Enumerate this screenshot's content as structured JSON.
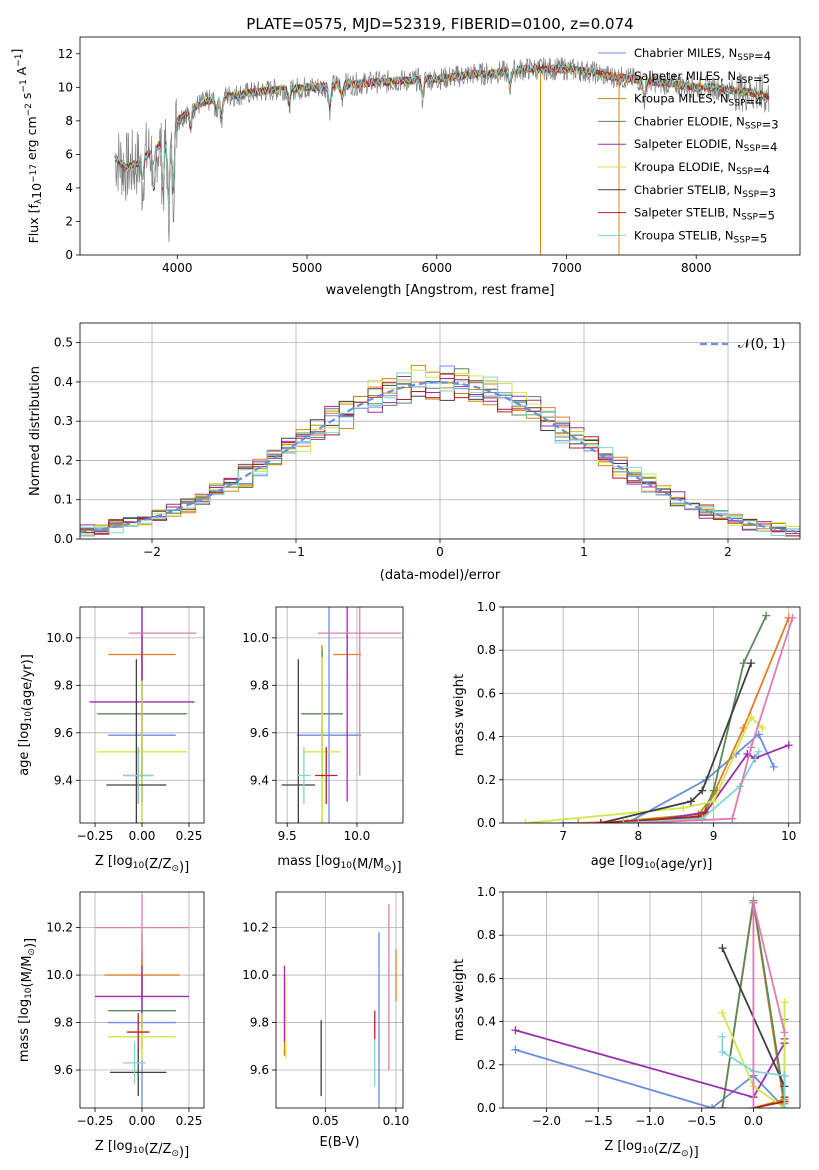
{
  "colors": [
    "#6a8fdc",
    "#e67e22",
    "#bf9000",
    "#5b8a5b",
    "#9b2fae",
    "#d6e64a",
    "#404040",
    "#b22222",
    "#7fd6d6",
    "#e07bb5"
  ],
  "chart_data": [
    {
      "id": "spectrum",
      "type": "line",
      "title": "PLATE=0575, MJD=52319, FIBERID=0100, z=0.074",
      "xlabel": "wavelength [Angstrom, rest frame]",
      "ylabel": "Flux [f",
      "ylabel_sub": "λ",
      "ylabel_mid": "10",
      "ylabel_sup1": "−17",
      "ylabel_rest": " erg cm",
      "ylabel_sup2": "−2",
      "ylabel_rest2": " s",
      "ylabel_sup3": "−1",
      "ylabel_rest3": " A",
      "ylabel_sup4": "−1",
      "ylabel_end": "]",
      "xlim": [
        3250,
        8800
      ],
      "ylim": [
        0,
        13
      ],
      "xticks": [
        4000,
        5000,
        6000,
        7000,
        8000
      ],
      "yticks": [
        0,
        2,
        4,
        6,
        8,
        10,
        12
      ],
      "legend": [
        {
          "name": "Chabrier MILES, N",
          "sub": "SSP",
          "val": "=4"
        },
        {
          "name": "Salpeter MILES, N",
          "sub": "SSP",
          "val": "=5"
        },
        {
          "name": "Kroupa MILES, N",
          "sub": "SSP",
          "val": "=4"
        },
        {
          "name": "Chabrier ELODIE, N",
          "sub": "SSP",
          "val": "=3"
        },
        {
          "name": "Salpeter ELODIE, N",
          "sub": "SSP",
          "val": "=4"
        },
        {
          "name": "Kroupa ELODIE, N",
          "sub": "SSP",
          "val": "=4"
        },
        {
          "name": "Chabrier STELIB, N",
          "sub": "SSP",
          "val": "=3"
        },
        {
          "name": "Salpeter STELIB, N",
          "sub": "SSP",
          "val": "=5"
        },
        {
          "name": "Kroupa STELIB, N",
          "sub": "SSP",
          "val": "=5"
        }
      ],
      "continuum": [
        [
          3500,
          6.0
        ],
        [
          3600,
          5.2
        ],
        [
          3700,
          5.5
        ],
        [
          3800,
          6.2
        ],
        [
          3900,
          6.8
        ],
        [
          3950,
          7.2
        ],
        [
          4000,
          8.0
        ],
        [
          4100,
          8.7
        ],
        [
          4200,
          9.1
        ],
        [
          4300,
          9.3
        ],
        [
          4400,
          9.5
        ],
        [
          4500,
          9.6
        ],
        [
          4600,
          9.7
        ],
        [
          4700,
          9.8
        ],
        [
          4800,
          9.9
        ],
        [
          4900,
          9.9
        ],
        [
          5000,
          10.0
        ],
        [
          5100,
          10.0
        ],
        [
          5200,
          10.1
        ],
        [
          5300,
          10.2
        ],
        [
          5400,
          10.2
        ],
        [
          5500,
          10.3
        ],
        [
          5600,
          10.3
        ],
        [
          5700,
          10.4
        ],
        [
          5800,
          10.4
        ],
        [
          5900,
          10.5
        ],
        [
          6000,
          10.5
        ],
        [
          6100,
          10.6
        ],
        [
          6200,
          10.7
        ],
        [
          6300,
          10.8
        ],
        [
          6400,
          10.8
        ],
        [
          6500,
          10.9
        ],
        [
          6600,
          11.0
        ],
        [
          6700,
          11.1
        ],
        [
          6800,
          11.1
        ],
        [
          6900,
          11.1
        ],
        [
          7000,
          11.1
        ],
        [
          7100,
          11.0
        ],
        [
          7200,
          10.9
        ],
        [
          7300,
          10.7
        ],
        [
          7400,
          10.6
        ],
        [
          7500,
          10.5
        ],
        [
          7600,
          10.4
        ],
        [
          7700,
          10.3
        ],
        [
          7800,
          10.2
        ],
        [
          7900,
          10.1
        ],
        [
          8000,
          10.0
        ],
        [
          8100,
          10.0
        ],
        [
          8200,
          9.9
        ],
        [
          8300,
          9.8
        ],
        [
          8400,
          9.7
        ],
        [
          8500,
          9.6
        ],
        [
          8550,
          9.4
        ]
      ],
      "absorptions": [
        [
          3730,
          1.5
        ],
        [
          3820,
          2.8
        ],
        [
          3890,
          3.0
        ],
        [
          3933,
          4.5
        ],
        [
          3968,
          4.0
        ],
        [
          4101,
          1.2
        ],
        [
          4300,
          1.0
        ],
        [
          4340,
          1.3
        ],
        [
          4861,
          1.0
        ],
        [
          5175,
          1.4
        ],
        [
          5270,
          0.8
        ],
        [
          5890,
          1.2
        ],
        [
          6563,
          1.0
        ],
        [
          7600,
          1.2
        ]
      ]
    },
    {
      "id": "residuals",
      "type": "step",
      "xlabel": "(data-model)/error",
      "ylabel": "Normed distribution",
      "xlim": [
        -2.5,
        2.5
      ],
      "ylim": [
        0,
        0.55
      ],
      "xticks": [
        -2,
        -1,
        0,
        1,
        2
      ],
      "xticklabels": [
        "−2",
        "−1",
        "0",
        "1",
        "2"
      ],
      "yticks": [
        0.0,
        0.1,
        0.2,
        0.3,
        0.4,
        0.5
      ],
      "yticklabels": [
        "0.0",
        "0.1",
        "0.2",
        "0.3",
        "0.4",
        "0.5"
      ],
      "bin_width": 0.1,
      "legend_label": "𝒩(0, 1)"
    },
    {
      "id": "age-vs-z",
      "type": "errorbar",
      "xlabel": "Z [log",
      "xlabel_sub": "10",
      "xlabel_rest": "(Z/Z",
      "xlabel_sub2": "⊙",
      "xlabel_end": ")]",
      "ylabel": "age  [log",
      "ylabel_sub": "10",
      "ylabel_rest": "(age/yr)]",
      "xlim": [
        -0.33,
        0.33
      ],
      "ylim": [
        9.22,
        10.13
      ],
      "xticks": [
        -0.25,
        0.0,
        0.25
      ],
      "xticklabels": [
        "−0.25",
        "0.00",
        "0.25"
      ],
      "yticks": [
        9.4,
        9.6,
        9.8,
        10.0
      ],
      "yticklabels": [
        "9.4",
        "9.6",
        "9.8",
        "10.0"
      ],
      "points": [
        {
          "c": 0,
          "x": 0.0,
          "y": 9.59,
          "xe": 0.18,
          "ye": 0.55
        },
        {
          "c": 1,
          "x": 0.0,
          "y": 9.93,
          "xe": 0.18,
          "ye": 0.1
        },
        {
          "c": 2,
          "x": 0.0,
          "y": 9.93,
          "xe": 0.0,
          "ye": 0.1
        },
        {
          "c": 3,
          "x": 0.0,
          "y": 9.68,
          "xe": 0.24,
          "ye": 0.27
        },
        {
          "c": 4,
          "x": 0.0,
          "y": 9.73,
          "xe": 0.28,
          "ye": 0.42
        },
        {
          "c": 5,
          "x": 0.0,
          "y": 9.52,
          "xe": 0.24,
          "ye": 0.3
        },
        {
          "c": 6,
          "x": -0.03,
          "y": 9.38,
          "xe": 0.16,
          "ye": 0.53
        },
        {
          "c": 7,
          "x": -0.02,
          "y": 9.42,
          "xe": 0.08,
          "ye": 0.12
        },
        {
          "c": 8,
          "x": -0.02,
          "y": 9.42,
          "xe": 0.08,
          "ye": 0.12
        },
        {
          "c": 9,
          "x": 0.11,
          "y": 10.02,
          "xe": 0.18,
          "ye": 0.0
        }
      ]
    },
    {
      "id": "age-vs-mass",
      "type": "errorbar",
      "xlabel": "mass [log",
      "xlabel_sub": "10",
      "xlabel_rest": "(M/M",
      "xlabel_sub2": "⊙",
      "xlabel_end": ")]",
      "xlim": [
        9.42,
        10.33
      ],
      "ylim": [
        9.22,
        10.13
      ],
      "xticks": [
        9.5,
        10.0
      ],
      "xticklabels": [
        "9.5",
        "10.0"
      ],
      "yticks": [
        9.4,
        9.6,
        9.8,
        10.0
      ],
      "yticklabels": [
        "9.4",
        "9.6",
        "9.8",
        "10.0"
      ],
      "points": [
        {
          "c": 0,
          "x": 9.8,
          "y": 9.59,
          "xe": 0.23,
          "ye": 0.55
        },
        {
          "c": 1,
          "x": 9.93,
          "y": 9.93,
          "xe": 0.1,
          "ye": 0.1
        },
        {
          "c": 2,
          "x": 9.75,
          "y": 9.57,
          "xe": 0.0,
          "ye": 0.4
        },
        {
          "c": 3,
          "x": 9.75,
          "y": 9.68,
          "xe": 0.15,
          "ye": 0.27
        },
        {
          "c": 4,
          "x": 9.93,
          "y": 9.73,
          "xe": 0.0,
          "ye": 0.42
        },
        {
          "c": 5,
          "x": 9.75,
          "y": 9.52,
          "xe": 0.13,
          "ye": 0.4
        },
        {
          "c": 6,
          "x": 9.58,
          "y": 9.38,
          "xe": 0.12,
          "ye": 0.53
        },
        {
          "c": 7,
          "x": 9.78,
          "y": 9.42,
          "xe": 0.08,
          "ye": 0.12
        },
        {
          "c": 8,
          "x": 9.62,
          "y": 9.42,
          "xe": 0.05,
          "ye": 0.12
        },
        {
          "c": 9,
          "x": 10.02,
          "y": 10.02,
          "xe": 0.3,
          "ye": 0.6
        }
      ]
    },
    {
      "id": "weight-vs-age",
      "type": "line",
      "xlabel": "age  [log",
      "xlabel_sub": "10",
      "xlabel_rest": "(age/yr)]",
      "ylabel": "mass weight",
      "xlim": [
        6.2,
        10.15
      ],
      "ylim": [
        0,
        1.0
      ],
      "xticks": [
        7,
        8,
        9,
        10
      ],
      "xticklabels": [
        "7",
        "8",
        "9",
        "10"
      ],
      "yticks": [
        0.0,
        0.2,
        0.4,
        0.6,
        0.8,
        1.0
      ],
      "yticklabels": [
        "0.0",
        "0.2",
        "0.4",
        "0.6",
        "0.8",
        "1.0"
      ],
      "series": [
        {
          "c": 0,
          "x": [
            7.0,
            7.85,
            8.9,
            9.3,
            9.6,
            9.8
          ],
          "y": [
            0.0,
            0.0,
            0.2,
            0.32,
            0.41,
            0.26
          ]
        },
        {
          "c": 1,
          "x": [
            7.2,
            8.85,
            9.4,
            10.0
          ],
          "y": [
            0.0,
            0.02,
            0.44,
            0.95
          ]
        },
        {
          "c": 2,
          "x": [
            7.5,
            8.8,
            9.05
          ],
          "y": [
            0.0,
            0.04,
            0.15
          ]
        },
        {
          "c": 3,
          "x": [
            7.8,
            8.85,
            9.0,
            9.4,
            9.7
          ],
          "y": [
            0.0,
            0.03,
            0.15,
            0.74,
            0.96
          ]
        },
        {
          "c": 4,
          "x": [
            8.0,
            8.9,
            9.45,
            9.55,
            10.0
          ],
          "y": [
            0.0,
            0.05,
            0.32,
            0.3,
            0.36
          ]
        },
        {
          "c": 5,
          "x": [
            6.5,
            8.6,
            9.0,
            9.5,
            9.65
          ],
          "y": [
            0.0,
            0.07,
            0.1,
            0.49,
            0.44
          ]
        },
        {
          "c": 6,
          "x": [
            7.5,
            8.7,
            8.85,
            9.5
          ],
          "y": [
            0.0,
            0.1,
            0.15,
            0.74
          ]
        },
        {
          "c": 7,
          "x": [
            7.5,
            8.8,
            8.9
          ],
          "y": [
            0.0,
            0.03,
            0.05
          ]
        },
        {
          "c": 8,
          "x": [
            7.8,
            8.85,
            9.35,
            9.6
          ],
          "y": [
            0.0,
            0.02,
            0.17,
            0.33
          ]
        },
        {
          "c": 9,
          "x": [
            8.0,
            9.25,
            9.5,
            10.05
          ],
          "y": [
            0.0,
            0.02,
            0.35,
            0.95
          ]
        }
      ]
    },
    {
      "id": "mass-vs-z",
      "type": "errorbar",
      "xlabel": "Z [log",
      "xlabel_sub": "10",
      "xlabel_rest": "(Z/Z",
      "xlabel_sub2": "⊙",
      "xlabel_end": ")]",
      "ylabel": "mass [log",
      "ylabel_sub": "10",
      "ylabel_rest": "(M/M",
      "ylabel_sub2": "⊙",
      "ylabel_end": ")]",
      "xlim": [
        -0.33,
        0.33
      ],
      "ylim": [
        9.44,
        10.35
      ],
      "xticks": [
        -0.25,
        0.0,
        0.25
      ],
      "xticklabels": [
        "−0.25",
        "0.00",
        "0.25"
      ],
      "yticks": [
        9.6,
        9.8,
        10.0,
        10.2
      ],
      "yticklabels": [
        "9.6",
        "9.8",
        "10.0",
        "10.2"
      ],
      "points": [
        {
          "c": 0,
          "x": 0.0,
          "y": 9.8,
          "xe": 0.18,
          "ye": 0.38
        },
        {
          "c": 1,
          "x": 0.0,
          "y": 10.0,
          "xe": 0.2,
          "ye": 0.1
        },
        {
          "c": 2,
          "x": 0.0,
          "y": 10.0,
          "xe": 0.0,
          "ye": 0.11
        },
        {
          "c": 3,
          "x": 0.0,
          "y": 9.85,
          "xe": 0.18,
          "ye": 0.16
        },
        {
          "c": 4,
          "x": 0.0,
          "y": 9.91,
          "xe": 0.25,
          "ye": 0.13
        },
        {
          "c": 5,
          "x": 0.0,
          "y": 9.74,
          "xe": 0.18,
          "ye": 0.1
        },
        {
          "c": 6,
          "x": -0.02,
          "y": 9.59,
          "xe": 0.15,
          "ye": 0.1
        },
        {
          "c": 7,
          "x": -0.02,
          "y": 9.76,
          "xe": 0.06,
          "ye": 0.08
        },
        {
          "c": 8,
          "x": -0.04,
          "y": 9.63,
          "xe": 0.06,
          "ye": 0.09
        },
        {
          "c": 9,
          "x": 0.0,
          "y": 10.2,
          "xe": 0.25,
          "ye": 0.14
        }
      ]
    },
    {
      "id": "mass-vs-ebv",
      "type": "errorbar",
      "xlabel": "E(B-V)",
      "xlim": [
        0.015,
        0.105
      ],
      "ylim": [
        9.44,
        10.35
      ],
      "xticks": [
        0.05,
        0.1
      ],
      "xticklabels": [
        "0.05",
        "0.10"
      ],
      "yticks": [
        9.6,
        9.8,
        10.0,
        10.2
      ],
      "yticklabels": [
        "9.6",
        "9.8",
        "10.0",
        "10.2"
      ],
      "points": [
        {
          "c": 0,
          "x": 0.088,
          "y": 9.8,
          "xe": 0,
          "ye": 0.38
        },
        {
          "c": 1,
          "x": 0.1,
          "y": 10.0,
          "xe": 0,
          "ye": 0.11
        },
        {
          "c": 2,
          "x": 0.021,
          "y": 9.83,
          "xe": 0,
          "ye": 0.17
        },
        {
          "c": 4,
          "x": 0.021,
          "y": 9.88,
          "xe": 0,
          "ye": 0.16
        },
        {
          "c": 5,
          "x": 0.022,
          "y": 9.82,
          "xe": 0,
          "ye": 0.17
        },
        {
          "c": 6,
          "x": 0.047,
          "y": 9.65,
          "xe": 0,
          "ye": 0.16
        },
        {
          "c": 7,
          "x": 0.085,
          "y": 9.79,
          "xe": 0,
          "ye": 0.06
        },
        {
          "c": 8,
          "x": 0.085,
          "y": 9.63,
          "xe": 0,
          "ye": 0.1
        },
        {
          "c": 9,
          "x": 0.095,
          "y": 9.95,
          "xe": 0,
          "ye": 0.35
        }
      ]
    },
    {
      "id": "weight-vs-z",
      "type": "line",
      "xlabel": "Z [log",
      "xlabel_sub": "10",
      "xlabel_rest": "(Z/Z",
      "xlabel_sub2": "⊙",
      "xlabel_end": ")]",
      "ylabel": "mass weight",
      "xlim": [
        -2.42,
        0.45
      ],
      "ylim": [
        0,
        1.0
      ],
      "xticks": [
        -2.0,
        -1.5,
        -1.0,
        -0.5,
        0.0
      ],
      "xticklabels": [
        "−2.0",
        "−1.5",
        "−1.0",
        "−0.5",
        "0.0"
      ],
      "yticks": [
        0.0,
        0.2,
        0.4,
        0.6,
        0.8,
        1.0
      ],
      "yticklabels": [
        "0.0",
        "0.2",
        "0.4",
        "0.6",
        "0.8",
        "1.0"
      ],
      "series": [
        {
          "c": 0,
          "x": [
            -2.3,
            -0.4,
            0.0,
            0.3,
            0.3
          ],
          "y": [
            0.27,
            0.0,
            0.15,
            0.0,
            0.41
          ]
        },
        {
          "c": 1,
          "x": [
            -0.3,
            0.0,
            0.3,
            0.3
          ],
          "y": [
            0.0,
            0.95,
            0.0,
            0.02
          ]
        },
        {
          "c": 2,
          "x": [
            0.0,
            0.3,
            0.3
          ],
          "y": [
            0.0,
            0.04,
            0.15
          ]
        },
        {
          "c": 3,
          "x": [
            -0.3,
            0.0,
            0.3,
            0.3
          ],
          "y": [
            0.0,
            0.96,
            0.03,
            0.15
          ]
        },
        {
          "c": 4,
          "x": [
            -2.3,
            0.0,
            0.3,
            0.3
          ],
          "y": [
            0.36,
            0.05,
            0.3,
            0.32
          ]
        },
        {
          "c": 5,
          "x": [
            -0.3,
            0.0,
            0.3,
            0.3
          ],
          "y": [
            0.44,
            0.1,
            0.0,
            0.49
          ]
        },
        {
          "c": 6,
          "x": [
            -0.3,
            0.3,
            0.3
          ],
          "y": [
            0.74,
            0.1,
            0.15
          ]
        },
        {
          "c": 7,
          "x": [
            0.0,
            0.3,
            0.3
          ],
          "y": [
            0.0,
            0.03,
            0.05
          ]
        },
        {
          "c": 8,
          "x": [
            -0.3,
            -0.3,
            0.0,
            0.3,
            0.3
          ],
          "y": [
            0.33,
            0.26,
            0.17,
            0.15,
            0.0
          ]
        },
        {
          "c": 9,
          "x": [
            0.0,
            0.0,
            0.3
          ],
          "y": [
            0.0,
            0.95,
            0.35
          ]
        }
      ]
    }
  ]
}
